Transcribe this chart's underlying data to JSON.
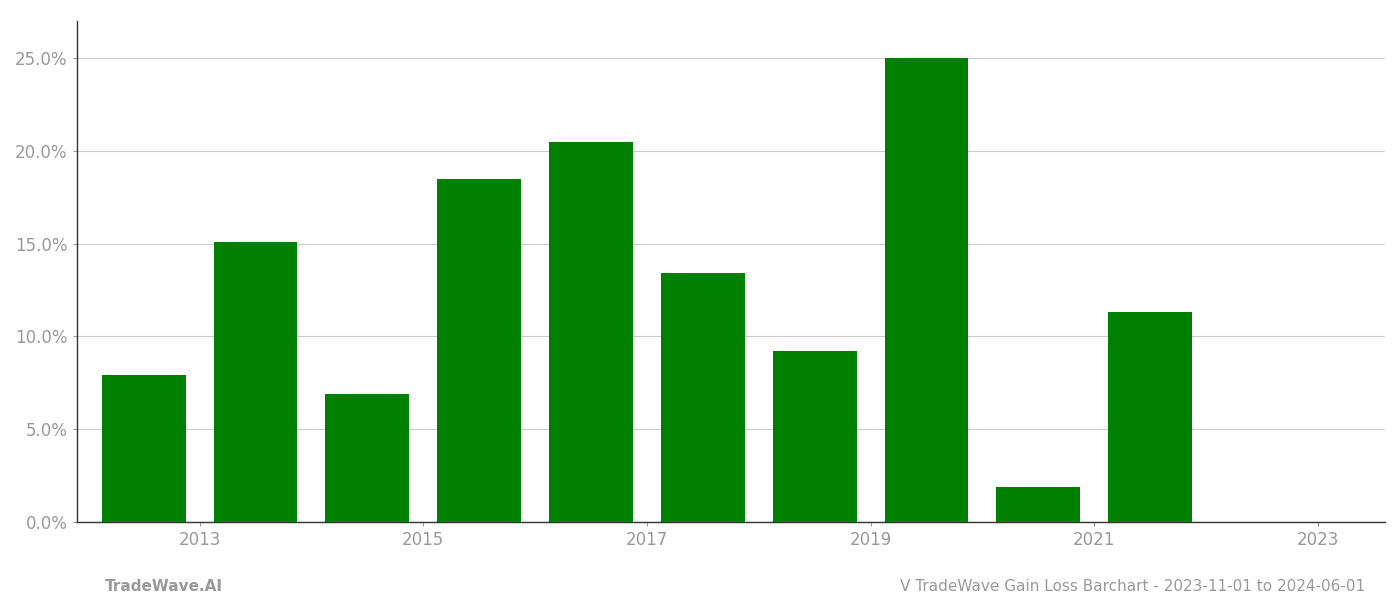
{
  "years": [
    2013,
    2014,
    2015,
    2016,
    2017,
    2018,
    2019,
    2020,
    2021,
    2022,
    2023
  ],
  "values": [
    0.079,
    0.151,
    0.069,
    0.185,
    0.205,
    0.134,
    0.092,
    0.25,
    0.019,
    0.113,
    0.0
  ],
  "bar_color": "#008000",
  "ylabel_ticks": [
    0.0,
    0.05,
    0.1,
    0.15,
    0.2,
    0.25
  ],
  "ylim": [
    0,
    0.27
  ],
  "xtick_positions": [
    2013.5,
    2015.5,
    2017.5,
    2019.5,
    2021.5,
    2023.5
  ],
  "xtick_labels": [
    "2013",
    "2015",
    "2017",
    "2019",
    "2021",
    "2023"
  ],
  "bottom_left_text": "TradeWave.AI",
  "bottom_right_text": "V TradeWave Gain Loss Barchart - 2023-11-01 to 2024-06-01",
  "background_color": "#ffffff",
  "grid_color": "#cccccc",
  "tick_label_color": "#999999",
  "bottom_text_color": "#999999",
  "bar_width": 0.75,
  "xlim_left": 2012.4,
  "xlim_right": 2024.1
}
